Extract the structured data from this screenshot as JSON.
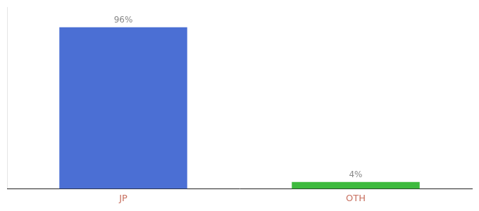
{
  "chart_data": {
    "type": "bar",
    "categories": [
      "JP",
      "OTH"
    ],
    "values": [
      96,
      4
    ],
    "value_labels": [
      "96%",
      "4%"
    ],
    "colors": [
      "#4b6fd4",
      "#3dba3d"
    ],
    "ylim": [
      0,
      108
    ],
    "grid": false,
    "data_labels": true,
    "tick_labels": "x"
  }
}
